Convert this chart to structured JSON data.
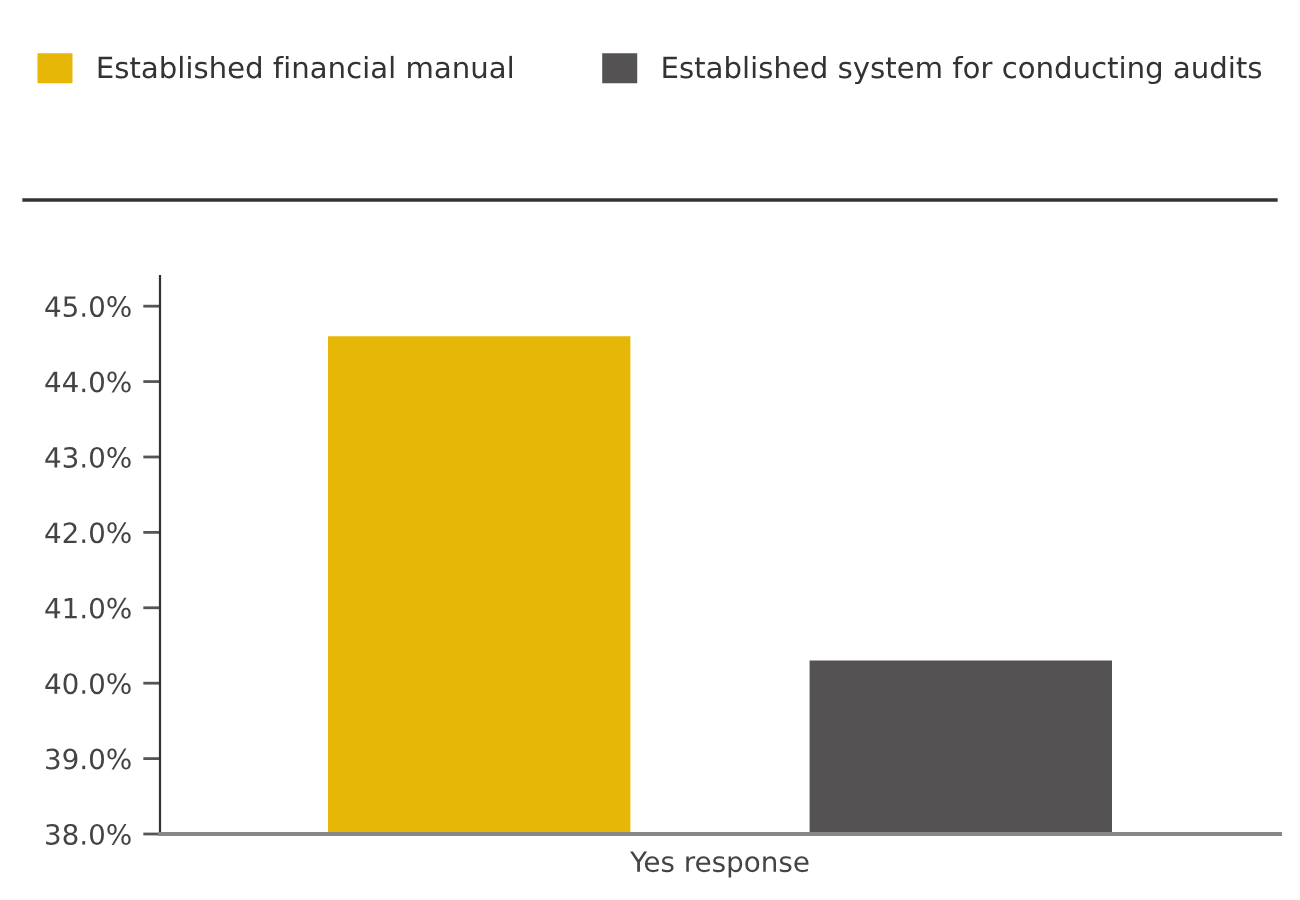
{
  "chart_data": {
    "type": "bar",
    "categories": [
      "Yes response"
    ],
    "series": [
      {
        "name": "Established financial manual",
        "color": "#e6b707",
        "values": [
          44.6
        ]
      },
      {
        "name": "Established system for conducting audits",
        "color": "#545253",
        "values": [
          40.3
        ]
      }
    ],
    "ylim": [
      38,
      45.4
    ],
    "yticks": [
      {
        "value": 38,
        "label": "38.0%"
      },
      {
        "value": 39,
        "label": "39.0%"
      },
      {
        "value": 40,
        "label": "40.0%"
      },
      {
        "value": 41,
        "label": "41.0%"
      },
      {
        "value": 42,
        "label": "42.0%"
      },
      {
        "value": 43,
        "label": "43.0%"
      },
      {
        "value": 44,
        "label": "44.0%"
      },
      {
        "value": 45,
        "label": "45.0%"
      }
    ],
    "legend": "top",
    "grid": false
  }
}
